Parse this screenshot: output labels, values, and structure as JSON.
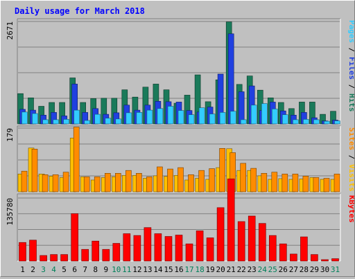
{
  "chart_data": {
    "title": "Daily usage for March 2018",
    "type": "bar",
    "days": [
      "1",
      "2",
      "3",
      "4",
      "5",
      "6",
      "7",
      "8",
      "9",
      "10",
      "11",
      "12",
      "13",
      "14",
      "15",
      "16",
      "17",
      "18",
      "19",
      "20",
      "21",
      "22",
      "23",
      "24",
      "25",
      "26",
      "27",
      "28",
      "29",
      "30",
      "31"
    ],
    "weekend_days": [
      "3",
      "4",
      "10",
      "11",
      "17",
      "18",
      "24",
      "25",
      "31"
    ],
    "panels": [
      {
        "name": "hits-files-pages",
        "ymax": 2671,
        "tick_label": "2671",
        "right_labels": [
          "Pages",
          "Files",
          "Hits"
        ],
        "series": [
          {
            "name": "Hits",
            "color": "#1a7a5a",
            "values": [
              790,
              680,
              460,
              560,
              560,
              1200,
              560,
              660,
              670,
              670,
              890,
              700,
              960,
              1040,
              890,
              540,
              750,
              1280,
              580,
              1150,
              2660,
              1030,
              1250,
              880,
              680,
              560,
              400,
              570,
              570,
              250,
              330
            ]
          },
          {
            "name": "Files",
            "color": "#2040e0",
            "values": [
              380,
              360,
              230,
              300,
              210,
              1040,
              300,
              400,
              250,
              290,
              490,
              360,
              490,
              590,
              580,
              570,
              350,
              310,
              440,
              1300,
              2350,
              840,
              990,
              350,
              570,
              340,
              230,
              300,
              160,
              80,
              100
            ]
          },
          {
            "name": "Pages",
            "color": "#33ccff",
            "values": [
              310,
              270,
              110,
              110,
              120,
              360,
              90,
              250,
              150,
              130,
              290,
              300,
              360,
              400,
              460,
              350,
              240,
              420,
              260,
              300,
              330,
              110,
              490,
              530,
              390,
              240,
              110,
              120,
              110,
              70,
              80
            ]
          }
        ]
      },
      {
        "name": "visits-sites",
        "ymax": 179,
        "tick_label": "179",
        "right_labels": [
          "Sites",
          "Visits"
        ],
        "series": [
          {
            "name": "Visits",
            "color": "#ffc000",
            "values": [
              50,
              123,
              50,
              44,
              40,
              151,
              42,
              33,
              40,
              42,
              46,
              46,
              38,
              45,
              43,
              46,
              33,
              38,
              35,
              68,
              121,
              60,
              60,
              45,
              35,
              37,
              35,
              36,
              40,
              35,
              35
            ]
          },
          {
            "name": "Sites",
            "color": "#ff8c00",
            "values": [
              58,
              120,
              48,
              48,
              55,
              182,
              42,
              42,
              52,
              52,
              60,
              52,
              42,
              70,
              64,
              68,
              48,
              60,
              65,
              122,
              110,
              80,
              66,
              52,
              55,
              50,
              50,
              44,
              40,
              38,
              50
            ]
          }
        ]
      },
      {
        "name": "kbytes",
        "ymax": 135780,
        "tick_label": "135780",
        "right_labels": [
          "KBytes"
        ],
        "series": [
          {
            "name": "KBytes",
            "color": "#ff0000",
            "values": [
              40000,
              45000,
              12000,
              14000,
              14000,
              102000,
              25000,
              43000,
              25000,
              38000,
              59000,
              55000,
              72000,
              59000,
              53000,
              56000,
              37000,
              65000,
              50000,
              115000,
              177000,
              85000,
              97000,
              81000,
              55000,
              37000,
              15000,
              52000,
              14000,
              3000,
              5000
            ]
          }
        ]
      }
    ]
  }
}
